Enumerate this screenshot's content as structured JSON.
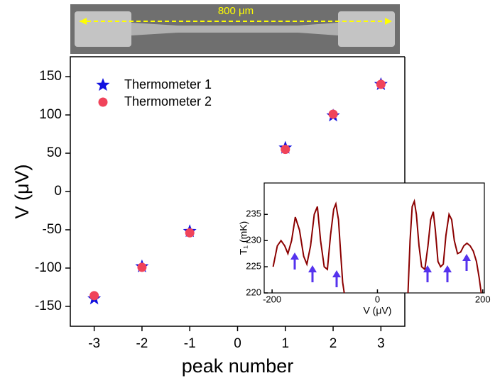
{
  "image": {
    "scale_label": "800 μm"
  },
  "chart_data": [
    {
      "type": "scatter",
      "x_label": "peak number",
      "y_label": "V (μV)",
      "x": [
        -3,
        -2,
        -1,
        1,
        2,
        3
      ],
      "series": [
        {
          "name": "Thermometer 1",
          "color": "#1010e0",
          "marker": "star",
          "values": [
            -140,
            -98,
            -52,
            57,
            99,
            140
          ]
        },
        {
          "name": "Thermometer 2",
          "color": "#f0435a",
          "marker": "circle",
          "values": [
            -136,
            -99,
            -54,
            55,
            101,
            140
          ]
        }
      ],
      "xlim": [
        -3.5,
        3.5
      ],
      "xticks": [
        -3,
        -2,
        -1,
        0,
        1,
        2,
        3
      ],
      "ylim": [
        -176,
        176
      ],
      "yticks": [
        -150,
        -100,
        -50,
        0,
        50,
        100,
        150
      ],
      "legend": "upper left"
    },
    {
      "type": "line",
      "x_label": "V (μV)",
      "y_label": "T₁ (mK)",
      "color": "#8b0000",
      "x": [
        -198,
        -190,
        -183,
        -176,
        -170,
        -163,
        -156,
        -148,
        -140,
        -134,
        -127,
        -120,
        -114,
        -108,
        -101,
        -95,
        -89,
        -83,
        -79,
        -74,
        -70,
        -66,
        -63,
        0,
        58,
        62,
        66,
        70,
        74,
        79,
        84,
        90,
        96,
        101,
        106,
        110,
        115,
        120,
        125,
        130,
        136,
        141,
        146,
        152,
        158,
        164,
        170,
        176,
        182,
        188,
        193,
        197
      ],
      "values": [
        225,
        229,
        230,
        229,
        227.5,
        230,
        234.5,
        232,
        227,
        225.5,
        229,
        235,
        236.5,
        230,
        225,
        224.5,
        231,
        236,
        237,
        234,
        228,
        222,
        220,
        null,
        220,
        230,
        236.5,
        237.5,
        235,
        229,
        225,
        224.5,
        229,
        234,
        235.5,
        232,
        226,
        225,
        225.5,
        231,
        235,
        234,
        230,
        227.5,
        227.8,
        229,
        229.5,
        229,
        228,
        226,
        223,
        220
      ],
      "xlim": [
        -215,
        203
      ],
      "xticks": [
        -200,
        0,
        200
      ],
      "ylim": [
        220,
        241
      ],
      "yticks": [
        220,
        225,
        230,
        235
      ]
    }
  ]
}
